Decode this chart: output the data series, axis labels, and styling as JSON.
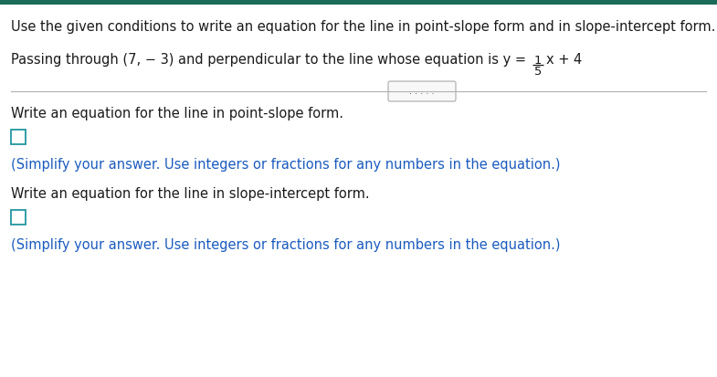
{
  "bg_color": "#ffffff",
  "top_bar_color": "#1a6b5a",
  "title_text": "Use the given conditions to write an equation for the line in point-slope form and in slope-intercept form.",
  "title_fontsize": 10.5,
  "title_color": "#1a1a1a",
  "condition_prefix": "Passing through (7, − 3) and perpendicular to the line whose equation is y = ",
  "condition_frac_num": "1",
  "condition_frac_den": "5",
  "condition_suffix": "x + 4",
  "condition_fontsize": 10.5,
  "body_fontsize": 10.5,
  "blue_color": "#1a5bbf",
  "black_color": "#1a1a1a",
  "checkbox_edge_color": "#2196a0",
  "checkbox_face_color": "#ffffff",
  "section1_label": "Write an equation for the line in point-slope form.",
  "section2_label": "Write an equation for the line in slope-intercept form.",
  "simplify_text": "(Simplify your answer. Use integers or fractions for any numbers in the equation.)",
  "dots_text": ". . . . ."
}
